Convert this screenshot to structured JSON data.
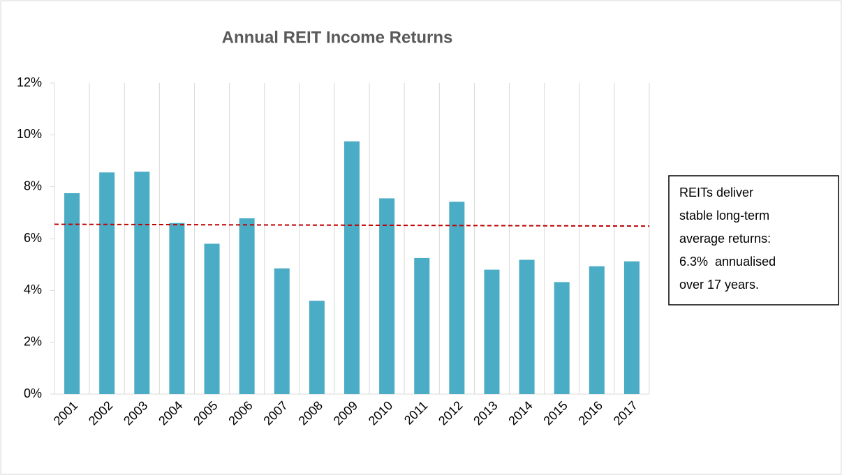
{
  "chart_data": {
    "type": "bar",
    "title": "Annual REIT Income Returns",
    "categories": [
      "2001",
      "2002",
      "2003",
      "2004",
      "2005",
      "2006",
      "2007",
      "2008",
      "2009",
      "2010",
      "2011",
      "2012",
      "2013",
      "2014",
      "2015",
      "2016",
      "2017"
    ],
    "values": [
      7.75,
      8.55,
      8.58,
      6.6,
      5.8,
      6.78,
      4.85,
      3.6,
      9.75,
      7.55,
      5.25,
      7.42,
      4.8,
      5.18,
      4.32,
      4.93,
      5.12
    ],
    "color": "#4bacc6",
    "ylim": [
      0,
      12
    ],
    "yticks": [
      {
        "value": 0,
        "label": "0%"
      },
      {
        "value": 2,
        "label": "2%"
      },
      {
        "value": 4,
        "label": "4%"
      },
      {
        "value": 6,
        "label": "6%"
      },
      {
        "value": 8,
        "label": "8%"
      },
      {
        "value": 10,
        "label": "10%"
      },
      {
        "value": 12,
        "label": "12%"
      }
    ],
    "grid": true,
    "reference_line": {
      "start": 6.55,
      "end": 6.48,
      "color": "#c00000"
    },
    "annotation": [
      "REITs deliver",
      "stable long-term",
      "average returns:",
      "6.3%  annualised",
      "over 17 years."
    ]
  }
}
